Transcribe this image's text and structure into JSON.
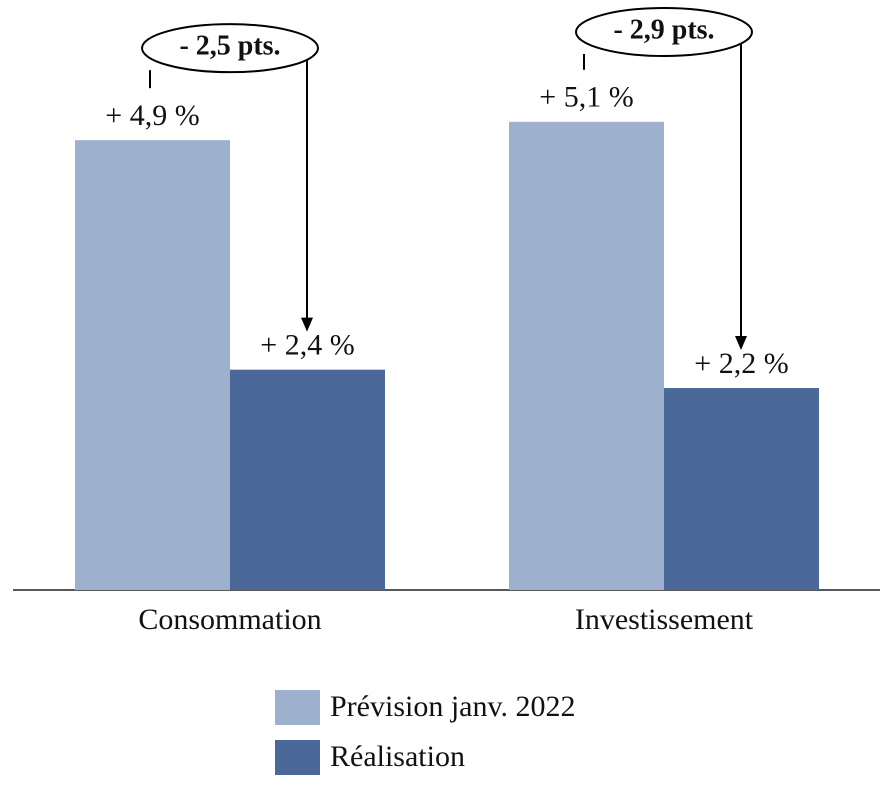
{
  "chart_data": {
    "type": "bar",
    "categories": [
      "Consommation",
      "Investissement"
    ],
    "series": [
      {
        "name": "Prévision janv. 2022",
        "color": "#9db0ce",
        "values": [
          4.9,
          5.1
        ],
        "value_labels": [
          "+ 4,9 %",
          "+ 5,1 %"
        ]
      },
      {
        "name": "Réalisation",
        "color": "#4a6898",
        "values": [
          2.4,
          2.2
        ],
        "value_labels": [
          "+ 2,4 %",
          "+ 2,2 %"
        ]
      }
    ],
    "annotations": [
      "- 2,5 pts.",
      "- 2,9 pts."
    ]
  }
}
